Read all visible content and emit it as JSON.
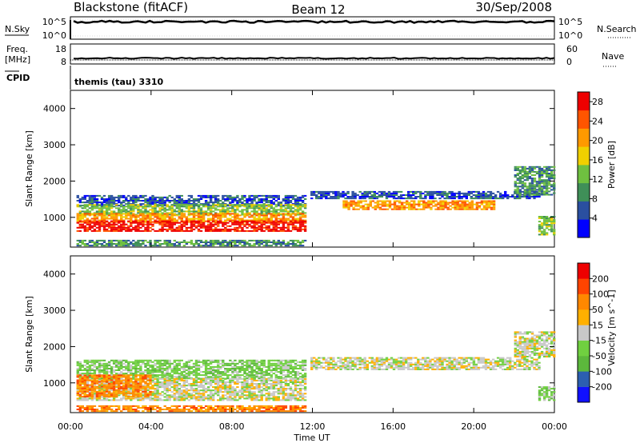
{
  "header": {
    "station": "Blackstone (fitACF)",
    "beam": "Beam 12",
    "date": "30/Sep/2008"
  },
  "aux_panels": {
    "nsky_label": "N.Sky",
    "nsky_ticks": [
      "10^5",
      "10^0"
    ],
    "nsearch_label": "N.Search",
    "nsearch_ticks": [
      "10^5",
      "10^0"
    ],
    "freq_label_1": "Freq.",
    "freq_label_2": "[MHz]",
    "freq_ticks": [
      "18",
      "8"
    ],
    "nave_label": "Nave",
    "nave_ticks": [
      "60",
      "0"
    ],
    "cpid_label": "CPID",
    "cpid_value": "themis (tau) 3310"
  },
  "colors": {
    "power_scale": [
      "#0000ff",
      "#2a4fa0",
      "#3f8f58",
      "#6fc040",
      "#f0d000",
      "#ff9900",
      "#ff5500",
      "#ee0000"
    ],
    "velocity_scale": [
      "#1010ff",
      "#2c5fb0",
      "#5cb83c",
      "#70d040",
      "#c8c8c8",
      "#ffb000",
      "#ff8800",
      "#ff4400",
      "#ee0000"
    ]
  },
  "chart_data": [
    {
      "type": "heatmap",
      "name": "power",
      "ylabel": "Slant Range [km]",
      "xlabel": "Time UT",
      "x_ticks": [
        "00:00",
        "04:00",
        "08:00",
        "12:00",
        "16:00",
        "20:00",
        "00:00"
      ],
      "x_range_hours": [
        0,
        24
      ],
      "y_ticks": [
        1000,
        2000,
        3000,
        4000
      ],
      "ylim": [
        180,
        4500
      ],
      "colorbar": {
        "label": "Power [dB]",
        "ticks": [
          4,
          8,
          12,
          16,
          20,
          24,
          28
        ],
        "range": [
          0,
          30
        ]
      },
      "regions": [
        {
          "t": [
            0.3,
            11.6
          ],
          "range_km": [
            1300,
            1600
          ],
          "level": 1
        },
        {
          "t": [
            0.3,
            11.6
          ],
          "range_km": [
            1050,
            1350
          ],
          "level": 3
        },
        {
          "t": [
            0.3,
            11.6
          ],
          "range_km": [
            850,
            1100
          ],
          "level": 5
        },
        {
          "t": [
            0.3,
            11.6
          ],
          "range_km": [
            600,
            900
          ],
          "level": 7
        },
        {
          "t": [
            0.3,
            11.6
          ],
          "range_km": [
            200,
            350
          ],
          "level": 2
        },
        {
          "t": [
            11.9,
            23.2
          ],
          "range_km": [
            1500,
            1700
          ],
          "level": 1
        },
        {
          "t": [
            13.5,
            21.0
          ],
          "range_km": [
            1200,
            1450
          ],
          "level": 5
        },
        {
          "t": [
            23.2,
            24.0
          ],
          "range_km": [
            500,
            1000
          ],
          "level": 3
        },
        {
          "t": [
            22.0,
            24.0
          ],
          "range_km": [
            1600,
            2400
          ],
          "level": 2
        }
      ]
    },
    {
      "type": "heatmap",
      "name": "velocity",
      "ylabel": "Slant Range [km]",
      "xlabel": "Time UT",
      "x_ticks": [
        "00:00",
        "04:00",
        "08:00",
        "12:00",
        "16:00",
        "20:00",
        "00:00"
      ],
      "x_range_hours": [
        0,
        24
      ],
      "y_ticks": [
        1000,
        2000,
        3000,
        4000
      ],
      "ylim": [
        180,
        4500
      ],
      "colorbar": {
        "label": "Velocity [m s^-1]",
        "ticks": [
          "200",
          "100",
          "50",
          "15",
          "-15",
          "-50",
          "-100",
          "-200"
        ],
        "range": [
          -250,
          250
        ]
      },
      "regions": [
        {
          "t": [
            0.3,
            11.6
          ],
          "range_km": [
            1100,
            1600
          ],
          "level": 3
        },
        {
          "t": [
            0.3,
            11.6
          ],
          "range_km": [
            500,
            1100
          ],
          "level": 4
        },
        {
          "t": [
            0.3,
            4.0
          ],
          "range_km": [
            600,
            1200
          ],
          "level": 6
        },
        {
          "t": [
            0.3,
            11.6
          ],
          "range_km": [
            200,
            350
          ],
          "level": 6
        },
        {
          "t": [
            11.9,
            23.2
          ],
          "range_km": [
            1350,
            1700
          ],
          "level": 4
        },
        {
          "t": [
            22.0,
            24.0
          ],
          "range_km": [
            1700,
            2400
          ],
          "level": 4
        },
        {
          "t": [
            23.2,
            24.0
          ],
          "range_km": [
            500,
            900
          ],
          "level": 3
        }
      ]
    }
  ]
}
